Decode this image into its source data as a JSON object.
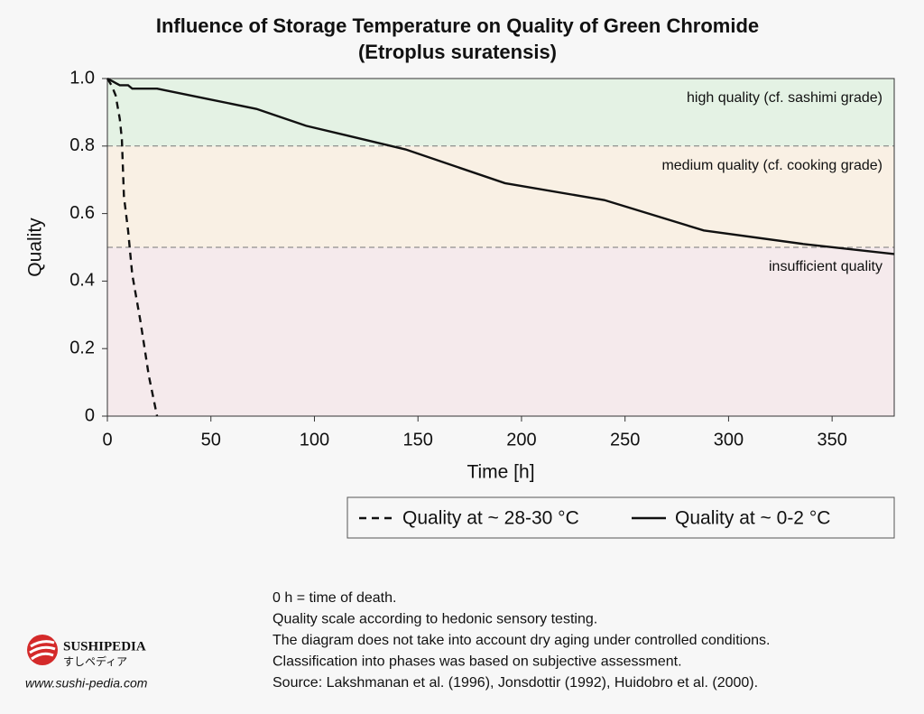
{
  "chart_data": {
    "type": "line",
    "title": "Influence of Storage Temperature on Quality of Green Chromide",
    "subtitle": "(Etroplus suratensis)",
    "x_label": "Time [h]",
    "y_label": "Quality",
    "xlim": [
      0,
      380
    ],
    "xticks": [
      0,
      50,
      100,
      150,
      200,
      250,
      300,
      350
    ],
    "ylim": [
      0,
      1
    ],
    "yticks": [
      0,
      0.2,
      0.4,
      0.6,
      0.8,
      {
        "value": 1,
        "label": "1.0"
      }
    ],
    "bands": [
      {
        "from": 0.8,
        "to": 1,
        "label": "high quality (cf. sashimi grade)",
        "color": "#e4f2e4"
      },
      {
        "from": 0.5,
        "to": 0.8,
        "label": "medium quality (cf. cooking grade)",
        "color": "#f9f0e4"
      },
      {
        "from": 0,
        "to": 0.5,
        "label": "insufficient quality",
        "color": "#f5eaec"
      }
    ],
    "series": [
      {
        "name": "Quality at ~ 28-30 °C",
        "color": "#111111",
        "dash": true,
        "x": [
          0,
          2,
          4,
          6,
          7,
          8,
          10,
          12,
          16,
          20,
          24
        ],
        "values": [
          1,
          0.98,
          0.95,
          0.88,
          0.82,
          0.65,
          0.55,
          0.42,
          0.28,
          0.12,
          0
        ]
      },
      {
        "name": "Quality at ~ 0-2 °C",
        "color": "#111111",
        "dash": false,
        "x": [
          0,
          3,
          6,
          10,
          12,
          24,
          48,
          72,
          96,
          144,
          192,
          240,
          288,
          336,
          380
        ],
        "values": [
          1,
          0.99,
          0.98,
          0.98,
          0.97,
          0.97,
          0.94,
          0.91,
          0.86,
          0.79,
          0.69,
          0.64,
          0.55,
          0.51,
          0.48
        ]
      }
    ]
  },
  "notes": [
    "0 h = time of death.",
    "Quality scale according to hedonic sensory testing.",
    "The diagram does not take into account dry aging under controlled conditions.",
    "Classification into phases was based on subjective assessment.",
    "Source: Lakshmanan et al. (1996), Jonsdottir (1992), Huidobro et al. (2000)."
  ],
  "brand": {
    "name": "SUSHIPEDIA",
    "subname": "すしペディア",
    "url": "www.sushi-pedia.com"
  }
}
